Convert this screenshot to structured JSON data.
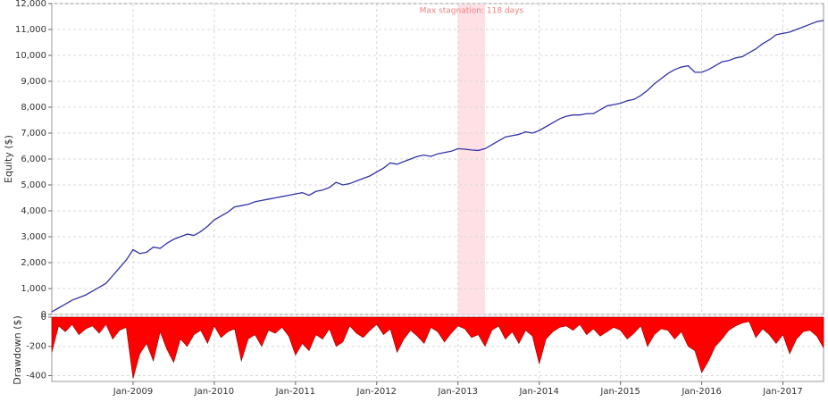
{
  "chart_data": [
    {
      "type": "line",
      "ylabel": "Equity ($)",
      "xlim": [
        "2008-01",
        "2017-07"
      ],
      "ylim": [
        0,
        12000
      ],
      "yticks": [
        0,
        {
          "value": 1000,
          "label": "1,000"
        },
        {
          "value": 2000,
          "label": "2,000"
        },
        {
          "value": 3000,
          "label": "3,000"
        },
        {
          "value": 4000,
          "label": "4,000"
        },
        {
          "value": 5000,
          "label": "5,000"
        },
        {
          "value": 6000,
          "label": "6,000"
        },
        {
          "value": 7000,
          "label": "7,000"
        },
        {
          "value": 8000,
          "label": "8,000"
        },
        {
          "value": 9000,
          "label": "9,000"
        },
        {
          "value": 10000,
          "label": "10,000"
        },
        {
          "value": 11000,
          "label": "11,000"
        },
        {
          "value": 12000,
          "label": "12,000"
        }
      ],
      "grid": true,
      "annotation": {
        "text": "Max stagnation: 118 days",
        "x_start": "2013-01",
        "x_end": "2013-05",
        "color": "#ffe0e4",
        "text_color": "#f08080"
      },
      "series": [
        {
          "name": "Equity",
          "color": "#3333aa",
          "values": [
            100,
            250,
            400,
            550,
            650,
            750,
            900,
            1050,
            1200,
            1500,
            1800,
            2100,
            2500,
            2350,
            2400,
            2600,
            2550,
            2750,
            2900,
            3000,
            3100,
            3050,
            3200,
            3400,
            3650,
            3800,
            3950,
            4150,
            4200,
            4250,
            4350,
            4400,
            4450,
            4500,
            4550,
            4600,
            4650,
            4700,
            4600,
            4750,
            4800,
            4900,
            5100,
            5000,
            5050,
            5150,
            5250,
            5350,
            5500,
            5650,
            5850,
            5800,
            5900,
            6000,
            6100,
            6150,
            6100,
            6200,
            6250,
            6300,
            6400,
            6380,
            6350,
            6330,
            6400,
            6550,
            6700,
            6850,
            6900,
            6950,
            7050,
            7000,
            7100,
            7250,
            7400,
            7550,
            7650,
            7700,
            7700,
            7750,
            7750,
            7900,
            8050,
            8100,
            8150,
            8250,
            8300,
            8450,
            8650,
            8900,
            9100,
            9300,
            9450,
            9550,
            9600,
            9350,
            9350,
            9450,
            9600,
            9750,
            9800,
            9900,
            9950,
            10100,
            10250,
            10450,
            10600,
            10800,
            10850,
            10900,
            11000,
            11100,
            11200,
            11300,
            11350
          ]
        }
      ]
    },
    {
      "type": "area",
      "ylabel": "Drawdown ($)",
      "xlim": [
        "2008-01",
        "2017-07"
      ],
      "ylim": [
        -440,
        0
      ],
      "yticks": [
        0,
        -200,
        -400
      ],
      "xticks": [
        {
          "value": "2009-01",
          "label": "Jan-2009"
        },
        {
          "value": "2010-01",
          "label": "Jan-2010"
        },
        {
          "value": "2011-01",
          "label": "Jan-2011"
        },
        {
          "value": "2012-01",
          "label": "Jan-2012"
        },
        {
          "value": "2013-01",
          "label": "Jan-2013"
        },
        {
          "value": "2014-01",
          "label": "Jan-2014"
        },
        {
          "value": "2015-01",
          "label": "Jan-2015"
        },
        {
          "value": "2016-01",
          "label": "Jan-2016"
        },
        {
          "value": "2017-01",
          "label": "Jan-2017"
        }
      ],
      "grid": true,
      "series": [
        {
          "name": "Drawdown",
          "color": "#ff0000",
          "values": [
            -240,
            -60,
            -100,
            -50,
            -120,
            -80,
            -60,
            -110,
            -50,
            -150,
            -90,
            -70,
            -420,
            -250,
            -180,
            -300,
            -100,
            -220,
            -310,
            -150,
            -200,
            -120,
            -90,
            -180,
            -60,
            -140,
            -100,
            -80,
            -300,
            -150,
            -120,
            -200,
            -90,
            -110,
            -70,
            -130,
            -260,
            -180,
            -230,
            -120,
            -150,
            -80,
            -200,
            -170,
            -60,
            -110,
            -140,
            -90,
            -50,
            -120,
            -80,
            -240,
            -150,
            -90,
            -130,
            -180,
            -70,
            -100,
            -170,
            -110,
            -60,
            -80,
            -140,
            -120,
            -200,
            -90,
            -60,
            -150,
            -100,
            -180,
            -90,
            -130,
            -320,
            -150,
            -100,
            -70,
            -60,
            -90,
            -50,
            -120,
            -80,
            -130,
            -100,
            -70,
            -90,
            -150,
            -110,
            -60,
            -200,
            -120,
            -80,
            -90,
            -150,
            -100,
            -200,
            -230,
            -380,
            -300,
            -200,
            -150,
            -90,
            -60,
            -40,
            -30,
            -140,
            -80,
            -120,
            -180,
            -120,
            -250,
            -150,
            -100,
            -90,
            -130,
            -210
          ]
        }
      ]
    }
  ]
}
